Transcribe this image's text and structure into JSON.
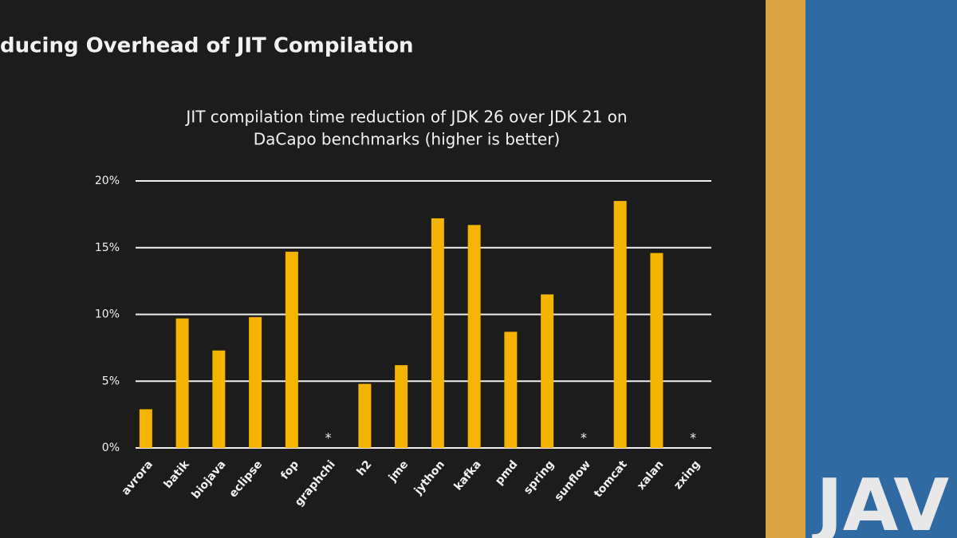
{
  "slide_title": "ducing Overhead of JIT Compilation",
  "backdrop_text": "JAV",
  "chart_data": {
    "type": "bar",
    "title_lines": [
      "JIT compilation time reduction of JDK 26 over JDK 21 on",
      "DaCapo benchmarks (higher is better)"
    ],
    "categories": [
      "avrora",
      "batik",
      "biojava",
      "eclipse",
      "fop",
      "graphchi",
      "h2",
      "jme",
      "jython",
      "kafka",
      "pmd",
      "spring",
      "sunflow",
      "tomcat",
      "xalan",
      "zxing"
    ],
    "values": [
      2.9,
      9.7,
      7.3,
      9.8,
      14.7,
      null,
      4.8,
      6.2,
      17.2,
      16.7,
      8.7,
      11.5,
      null,
      18.5,
      14.6,
      null
    ],
    "value_labels": [
      null,
      null,
      null,
      null,
      null,
      "*",
      null,
      null,
      null,
      null,
      null,
      null,
      "*",
      null,
      null,
      "*"
    ],
    "color": "#f4b400",
    "ylim": [
      0,
      20
    ],
    "yticks": [
      {
        "value": 0,
        "label": "0%"
      },
      {
        "value": 5,
        "label": "5%"
      },
      {
        "value": 10,
        "label": "10%"
      },
      {
        "value": 15,
        "label": "15%"
      },
      {
        "value": 20,
        "label": "20%"
      }
    ],
    "grid": true
  }
}
